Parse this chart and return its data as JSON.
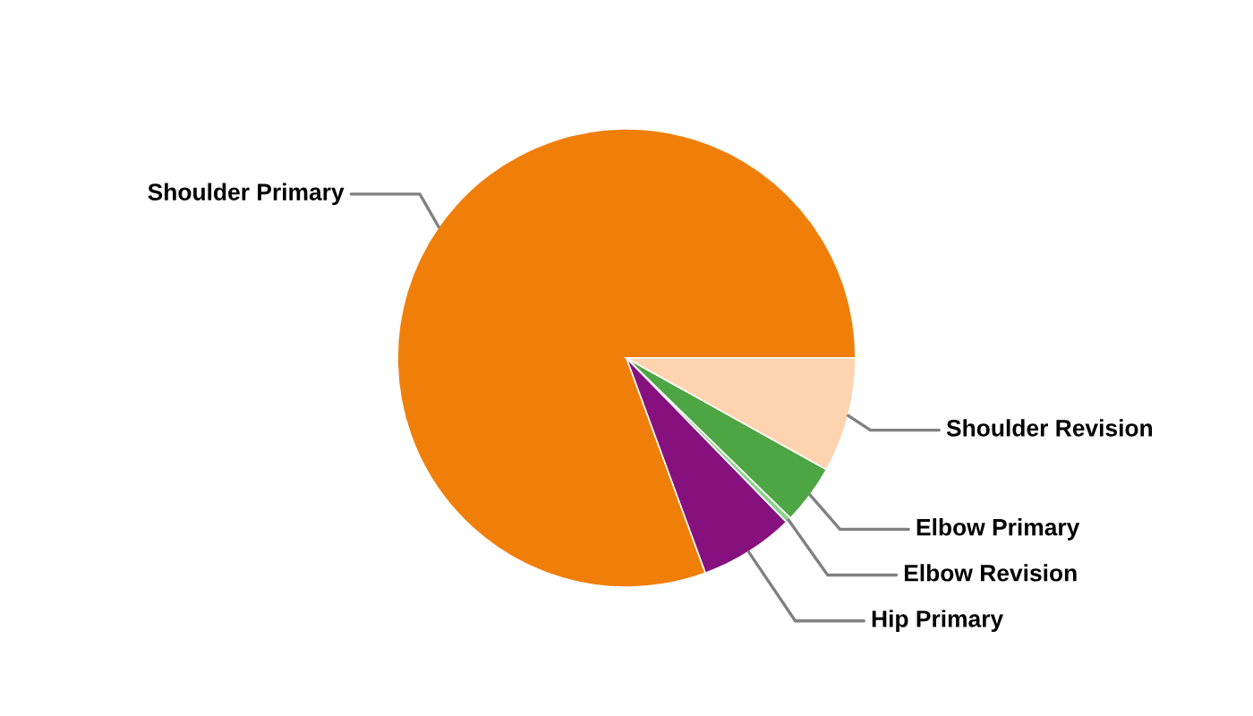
{
  "chart_data": {
    "type": "pie",
    "categories": [
      "Shoulder Primary",
      "Hip Primary",
      "Elbow Revision",
      "Elbow Primary",
      "Shoulder Revision"
    ],
    "values": [
      80.6,
      6.7,
      0.4,
      4.2,
      8.1
    ],
    "colors": [
      "#f07f09",
      "#87107f",
      "#8fd18f",
      "#4ea543",
      "#fdd3b0"
    ]
  }
}
